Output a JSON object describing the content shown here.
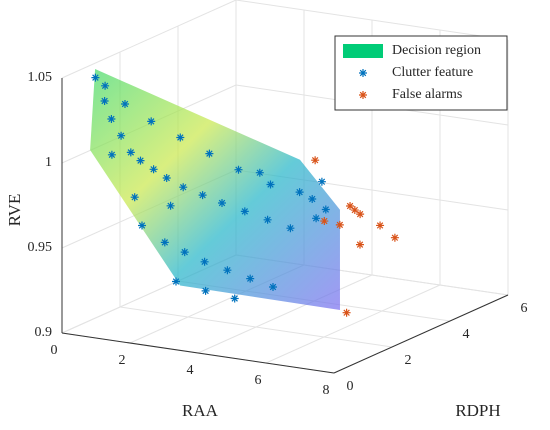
{
  "chart_data": {
    "type": "scatter3d",
    "xlabel": "RAA",
    "ylabel": "RDPH",
    "zlabel": "RVE",
    "xlim": [
      0,
      8
    ],
    "ylim": [
      0,
      6
    ],
    "zlim": [
      0.9,
      1.05
    ],
    "xticks": [
      0,
      2,
      4,
      6,
      8
    ],
    "yticks": [
      0,
      2,
      4,
      6
    ],
    "zticks": [
      0.9,
      0.95,
      1,
      1.05
    ],
    "grid": true,
    "legend": "upper right",
    "region": {
      "name": "Decision region",
      "color": "#00cc77",
      "x": [
        0.12,
        4.44,
        5.19,
        5.19,
        2.62,
        0.4
      ],
      "y": [
        1,
        3,
        3.5,
        3.5,
        1,
        0.5
      ],
      "z": [
        1.048,
        0.992,
        0.961,
        0.902,
        0.928,
        1.005
      ]
    },
    "series": [
      {
        "name": "Clutter feature",
        "color": "#0072bd",
        "marker": "*",
        "x": [
          0.3,
          0.5,
          0.4,
          0.6,
          0.8,
          1.0,
          1.2,
          1.5,
          1.8,
          2.2,
          2.6,
          3.0,
          3.5,
          4.0,
          4.5,
          5.0,
          5.2,
          1.0,
          1.6,
          2.2,
          2.8,
          3.4,
          4.0,
          4.6,
          1.5,
          2.0,
          2.5,
          3.0,
          3.5,
          4.0,
          4.5,
          2.5,
          3.2,
          3.8,
          1.2,
          2.0,
          0.7,
          5.0,
          4.8,
          3.6
        ],
        "y": [
          0.8,
          0.9,
          1.0,
          1.0,
          1.1,
          1.2,
          1.3,
          1.4,
          1.5,
          1.6,
          1.8,
          2.0,
          2.2,
          2.4,
          2.6,
          2.9,
          3.0,
          1.0,
          1.2,
          1.5,
          1.8,
          2.1,
          2.5,
          2.8,
          1.0,
          1.2,
          1.3,
          1.4,
          1.6,
          1.8,
          2.0,
          1.0,
          1.2,
          1.5,
          1.1,
          1.4,
          0.9,
          3.1,
          3.0,
          2.6
        ],
        "z": [
          1.045,
          1.04,
          1.03,
          1.02,
          1.01,
          1.0,
          0.995,
          0.99,
          0.985,
          0.98,
          0.975,
          0.97,
          0.965,
          0.96,
          0.955,
          0.96,
          0.965,
          1.03,
          1.02,
          1.01,
          1.0,
          0.99,
          0.98,
          0.975,
          0.96,
          0.95,
          0.945,
          0.94,
          0.935,
          0.93,
          0.925,
          0.93,
          0.925,
          0.92,
          0.975,
          0.97,
          1.0,
          0.98,
          0.97,
          0.985
        ]
      },
      {
        "name": "False alarms",
        "color": "#d95319",
        "marker": "*",
        "x": [
          4.46,
          5.06,
          4.93,
          5.09,
          5.1,
          4.5,
          4.76,
          4.73,
          5.3,
          5.03
        ],
        "y": [
          3.5,
          4,
          4.5,
          5,
          5.5,
          5,
          4,
          3.5,
          3.6,
          4.2
        ],
        "z": [
          0.988,
          0.959,
          0.95,
          0.94,
          0.929,
          0.927,
          0.947,
          0.953,
          0.9,
          0.955
        ]
      }
    ]
  }
}
